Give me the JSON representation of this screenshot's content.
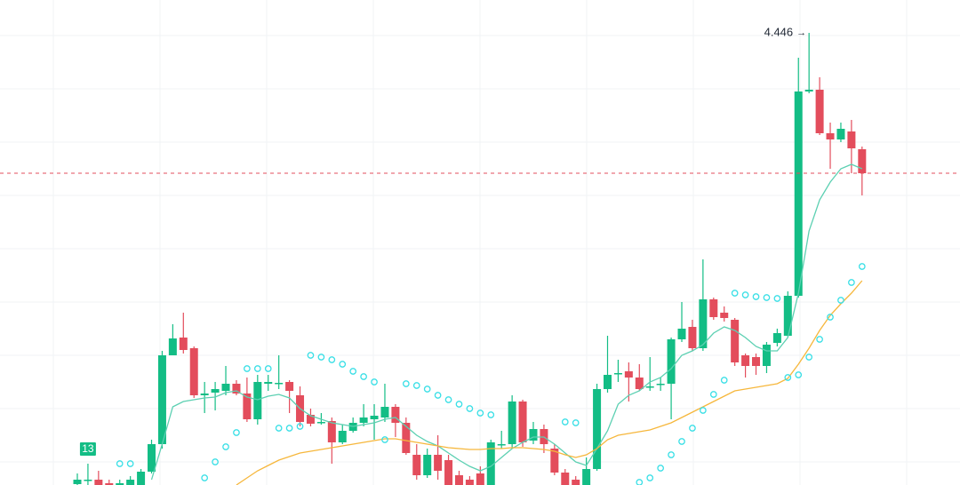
{
  "chart_data": {
    "type": "candlestick",
    "ylim": [
      3.428,
      4.52
    ],
    "grid": true,
    "up_color": "#13bd85",
    "down_color": "#e34d5c",
    "open": [
      3.43,
      3.44,
      3.44,
      3.432,
      3.428,
      3.428,
      3.428,
      3.458,
      3.52,
      3.72,
      3.76,
      3.736,
      3.63,
      3.636,
      3.64,
      3.656,
      3.634,
      3.576,
      3.656,
      3.658,
      3.66,
      3.63,
      3.586,
      3.57,
      3.572,
      3.524,
      3.55,
      3.568,
      3.576,
      3.58,
      3.604,
      3.568,
      3.496,
      3.45,
      3.496,
      3.484,
      3.45,
      3.44,
      3.454,
      3.428,
      3.52,
      3.52,
      3.616,
      3.528,
      3.554,
      3.51,
      3.456,
      3.44,
      3.428,
      3.464,
      3.644,
      3.68,
      3.684,
      3.67,
      3.65,
      3.656,
      3.656,
      3.756,
      3.784,
      3.736,
      3.846,
      3.816,
      3.8,
      3.72,
      3.716,
      3.696,
      3.748,
      3.764,
      3.854,
      4.314,
      4.318,
      4.22,
      4.206,
      4.224,
      4.184
    ],
    "high": [
      3.454,
      3.476,
      3.46,
      3.44,
      3.44,
      3.448,
      3.464,
      3.53,
      3.73,
      3.79,
      3.816,
      3.74,
      3.66,
      3.66,
      3.696,
      3.664,
      3.67,
      3.676,
      3.676,
      3.72,
      3.664,
      3.65,
      3.6,
      3.59,
      3.58,
      3.564,
      3.58,
      3.61,
      3.61,
      3.656,
      3.61,
      3.58,
      3.52,
      3.51,
      3.54,
      3.496,
      3.46,
      3.448,
      3.47,
      3.53,
      3.55,
      3.63,
      3.62,
      3.57,
      3.564,
      3.52,
      3.464,
      3.448,
      3.49,
      3.656,
      3.764,
      3.71,
      3.704,
      3.7,
      3.716,
      3.67,
      3.76,
      3.84,
      3.8,
      3.936,
      3.85,
      3.83,
      3.804,
      3.724,
      3.724,
      3.75,
      3.78,
      3.864,
      4.39,
      4.446,
      4.346,
      4.244,
      4.244,
      4.25,
      4.19
    ],
    "low": [
      3.428,
      3.428,
      3.428,
      3.428,
      3.428,
      3.428,
      3.428,
      3.454,
      3.51,
      3.72,
      3.724,
      3.624,
      3.59,
      3.596,
      3.63,
      3.63,
      3.57,
      3.564,
      3.64,
      3.644,
      3.59,
      3.56,
      3.56,
      3.564,
      3.476,
      3.52,
      3.546,
      3.56,
      3.53,
      3.57,
      3.536,
      3.496,
      3.44,
      3.444,
      3.44,
      3.428,
      3.428,
      3.428,
      3.428,
      3.428,
      3.51,
      3.51,
      3.514,
      3.52,
      3.5,
      3.45,
      3.428,
      3.428,
      3.428,
      3.46,
      3.636,
      3.66,
      3.616,
      3.64,
      3.64,
      3.64,
      3.576,
      3.75,
      3.73,
      3.73,
      3.8,
      3.796,
      3.696,
      3.67,
      3.676,
      3.68,
      3.74,
      3.76,
      3.85,
      4.31,
      4.216,
      4.14,
      4.2,
      4.13,
      4.08
    ],
    "close": [
      3.44,
      3.44,
      3.428,
      3.428,
      3.432,
      3.44,
      3.458,
      3.52,
      3.72,
      3.758,
      3.732,
      3.63,
      3.634,
      3.644,
      3.656,
      3.634,
      3.576,
      3.66,
      3.66,
      3.658,
      3.64,
      3.57,
      3.566,
      3.57,
      3.524,
      3.55,
      3.568,
      3.58,
      3.584,
      3.604,
      3.568,
      3.5,
      3.45,
      3.496,
      3.46,
      3.428,
      3.428,
      3.428,
      3.428,
      3.524,
      3.52,
      3.616,
      3.524,
      3.554,
      3.52,
      3.456,
      3.428,
      3.428,
      3.464,
      3.644,
      3.676,
      3.68,
      3.67,
      3.644,
      3.65,
      3.656,
      3.756,
      3.78,
      3.736,
      3.846,
      3.806,
      3.804,
      3.704,
      3.696,
      3.696,
      3.744,
      3.77,
      3.854,
      4.314,
      4.318,
      4.22,
      4.206,
      4.23,
      4.186,
      4.13
    ],
    "series": [
      {
        "color": "#5cd0b2",
        "style": "line",
        "values": [
          null,
          null,
          null,
          null,
          null,
          null,
          null,
          3.44,
          3.52,
          3.604,
          3.616,
          3.62,
          3.624,
          3.626,
          3.636,
          3.64,
          3.626,
          3.62,
          3.628,
          3.632,
          3.624,
          3.6,
          3.584,
          3.576,
          3.568,
          3.564,
          3.56,
          3.564,
          3.568,
          3.576,
          3.58,
          3.56,
          3.54,
          3.526,
          3.516,
          3.5,
          3.484,
          3.47,
          3.46,
          3.47,
          3.49,
          3.51,
          3.524,
          3.536,
          3.536,
          3.52,
          3.5,
          3.48,
          3.472,
          3.51,
          3.55,
          3.61,
          3.63,
          3.64,
          3.66,
          3.67,
          3.69,
          3.72,
          3.73,
          3.744,
          3.77,
          3.784,
          3.776,
          3.76,
          3.74,
          3.73,
          3.73,
          3.76,
          3.86,
          4.0,
          4.07,
          4.11,
          4.14,
          4.15,
          4.14
        ]
      },
      {
        "color": "#f6b73c",
        "style": "line",
        "values": [
          null,
          null,
          null,
          null,
          null,
          null,
          null,
          null,
          null,
          null,
          null,
          null,
          null,
          null,
          null,
          3.428,
          3.444,
          3.46,
          3.472,
          3.484,
          3.492,
          3.5,
          3.504,
          3.508,
          3.512,
          3.516,
          3.52,
          3.524,
          3.528,
          3.532,
          3.532,
          3.528,
          3.524,
          3.52,
          3.516,
          3.512,
          3.51,
          3.508,
          3.508,
          3.51,
          3.51,
          3.512,
          3.512,
          3.51,
          3.508,
          3.504,
          3.496,
          3.49,
          3.496,
          3.51,
          3.53,
          3.54,
          3.544,
          3.548,
          3.552,
          3.56,
          3.568,
          3.58,
          3.592,
          3.604,
          3.616,
          3.628,
          3.64,
          3.644,
          3.648,
          3.652,
          3.656,
          3.668,
          3.7,
          3.736,
          3.776,
          3.81,
          3.836,
          3.86,
          3.888
        ]
      },
      {
        "color": "#39dfe6",
        "style": "dots",
        "values": [
          null,
          null,
          null,
          null,
          3.476,
          3.476,
          null,
          null,
          null,
          null,
          null,
          null,
          3.444,
          3.48,
          3.514,
          3.546,
          3.69,
          3.69,
          3.69,
          3.556,
          3.556,
          3.56,
          3.72,
          3.716,
          3.71,
          3.7,
          3.684,
          3.672,
          3.66,
          3.53,
          null,
          3.656,
          3.652,
          3.644,
          3.63,
          3.62,
          3.61,
          3.6,
          3.59,
          3.586,
          null,
          null,
          null,
          null,
          null,
          null,
          3.57,
          3.568,
          null,
          null,
          null,
          null,
          null,
          3.434,
          3.444,
          3.466,
          3.496,
          3.526,
          3.556,
          3.596,
          3.632,
          3.664,
          3.86,
          3.856,
          3.852,
          3.85,
          3.848,
          3.67,
          3.676,
          3.716,
          3.756,
          3.806,
          3.844,
          3.884,
          3.92
        ]
      }
    ],
    "high_label": "4.446",
    "markers": [
      {
        "index": 1,
        "label": "13"
      }
    ]
  }
}
